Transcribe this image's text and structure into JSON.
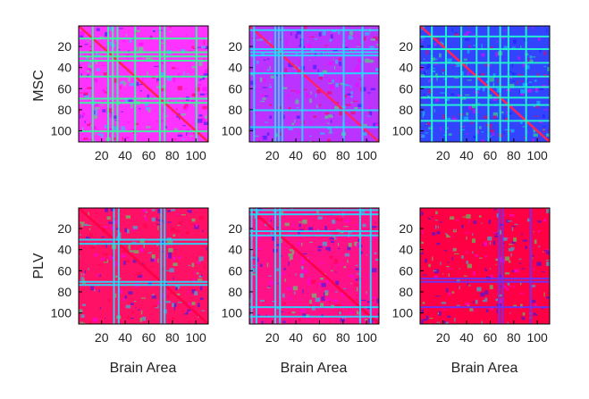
{
  "chart_data": {
    "type": "heatmap",
    "matrix_size": 110,
    "colormap": [
      "#1a1aff",
      "#00e5ff",
      "#33ff66",
      "#ff00ff",
      "#ff0044"
    ],
    "tick_values": [
      20,
      40,
      60,
      80,
      100
    ],
    "row_labels": [
      "MSC",
      "PLV"
    ],
    "xlabel": "Brain Area",
    "panels": [
      {
        "row": 0,
        "col": 0,
        "base": "#ff33ff",
        "diag": "#ff2255",
        "lines": [
          12,
          25,
          29,
          33,
          48,
          69,
          73,
          100
        ],
        "line_color": "#33ff99"
      },
      {
        "row": 0,
        "col": 1,
        "base": "#bb33ff",
        "diag": "#ff2266",
        "lines": [
          4,
          22,
          25,
          28,
          45,
          80,
          96
        ],
        "line_color": "#22ddff"
      },
      {
        "row": 0,
        "col": 2,
        "base": "#3344ff",
        "diag": "#ff2255",
        "lines": [
          10,
          22,
          35,
          48,
          58,
          68,
          75,
          90
        ],
        "line_color": "#22ffcc"
      },
      {
        "row": 1,
        "col": 0,
        "base": "#ff1166",
        "diag": "#ff0044",
        "lines": [
          30,
          34,
          70,
          73
        ],
        "line_color": "#22ddff"
      },
      {
        "row": 1,
        "col": 1,
        "base": "#ff1188",
        "diag": "#ff0044",
        "lines": [
          2,
          6,
          22,
          26,
          94,
          103
        ],
        "line_color": "#22ddff"
      },
      {
        "row": 1,
        "col": 2,
        "base": "#ff0044",
        "diag": "#ff0044",
        "lines": [
          67,
          70,
          94
        ],
        "line_color": "#6633ff"
      }
    ]
  }
}
